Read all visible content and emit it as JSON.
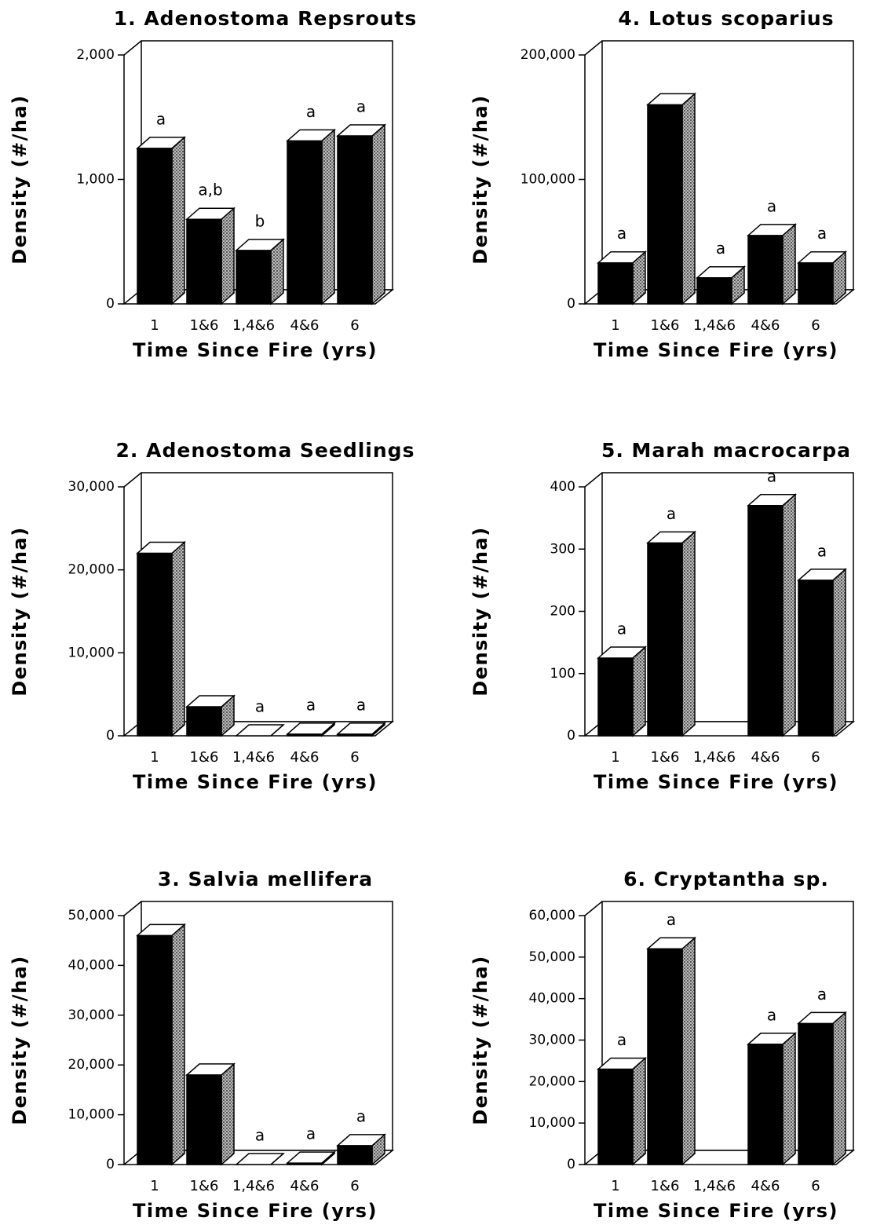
{
  "chart_data": [
    {
      "type": "bar3d",
      "title": "1. Adenostoma Repsrouts",
      "ylabel": "Density (#/ha)",
      "xlabel": "Time Since Fire (yrs)",
      "categories": [
        "1",
        "1&6",
        "1,4&6",
        "4&6",
        "6"
      ],
      "values": [
        1250,
        680,
        430,
        1310,
        1350
      ],
      "labels": [
        "a",
        "a,b",
        "b",
        "a",
        "a"
      ],
      "ylim": [
        0,
        2000
      ],
      "yticks": [
        0,
        {
          "value": 1000,
          "label": "1,000"
        },
        {
          "value": 2000,
          "label": "2,000"
        }
      ],
      "color": "#000000"
    },
    {
      "type": "bar3d",
      "title": "4. Lotus scoparius",
      "ylabel": "Density (#/ha)",
      "xlabel": "Time Since Fire (yrs)",
      "categories": [
        "1",
        "1&6",
        "1,4&6",
        "4&6",
        "6"
      ],
      "values": [
        33000,
        160000,
        21000,
        55000,
        33000
      ],
      "labels": [
        "a",
        null,
        "a",
        "a",
        "a"
      ],
      "ylim": [
        0,
        200000
      ],
      "yticks": [
        0,
        {
          "value": 100000,
          "label": "100,000"
        },
        {
          "value": 200000,
          "label": "200,000"
        }
      ],
      "color": "#000000"
    },
    {
      "type": "bar3d",
      "title": "2. Adenostoma Seedlings",
      "ylabel": "Density (#/ha)",
      "xlabel": "Time Since Fire (yrs)",
      "categories": [
        "1",
        "1&6",
        "1,4&6",
        "4&6",
        "6"
      ],
      "values": [
        22000,
        3500,
        0,
        200,
        200
      ],
      "labels": [
        null,
        null,
        "a",
        "a",
        "a"
      ],
      "ylim": [
        0,
        30000
      ],
      "yticks": [
        0,
        {
          "value": 10000,
          "label": "10,000"
        },
        {
          "value": 20000,
          "label": "20,000"
        },
        {
          "value": 30000,
          "label": "30,000"
        }
      ],
      "color": "#000000"
    },
    {
      "type": "bar3d",
      "title": "5. Marah macrocarpa",
      "ylabel": "Density (#/ha)",
      "xlabel": "Time Since Fire (yrs)",
      "categories": [
        "1",
        "1&6",
        "1,4&6",
        "4&6",
        "6"
      ],
      "values": [
        125,
        310,
        null,
        370,
        250
      ],
      "labels": [
        "a",
        "a",
        null,
        "a",
        "a"
      ],
      "ylim": [
        0,
        400
      ],
      "yticks": [
        0,
        100,
        200,
        300,
        400
      ],
      "color": "#000000"
    },
    {
      "type": "bar3d",
      "title": "3. Salvia mellifera",
      "ylabel": "Density (#/ha)",
      "xlabel": "Time Since Fire (yrs)",
      "categories": [
        "1",
        "1&6",
        "1,4&6",
        "4&6",
        "6"
      ],
      "values": [
        46000,
        18000,
        0,
        300,
        3800
      ],
      "labels": [
        null,
        null,
        "a",
        "a",
        "a"
      ],
      "ylim": [
        0,
        50000
      ],
      "yticks": [
        0,
        {
          "value": 10000,
          "label": "10,000"
        },
        {
          "value": 20000,
          "label": "20,000"
        },
        {
          "value": 30000,
          "label": "30,000"
        },
        {
          "value": 40000,
          "label": "40,000"
        },
        {
          "value": 50000,
          "label": "50,000"
        }
      ],
      "color": "#000000"
    },
    {
      "type": "bar3d",
      "title": "6. Cryptantha sp.",
      "ylabel": "Density (#/ha)",
      "xlabel": "Time Since Fire (yrs)",
      "categories": [
        "1",
        "1&6",
        "1,4&6",
        "4&6",
        "6"
      ],
      "values": [
        23000,
        52000,
        null,
        29000,
        34000
      ],
      "labels": [
        "a",
        "a",
        null,
        "a",
        "a"
      ],
      "ylim": [
        0,
        60000
      ],
      "yticks": [
        0,
        {
          "value": 10000,
          "label": "10,000"
        },
        {
          "value": 20000,
          "label": "20,000"
        },
        {
          "value": 30000,
          "label": "30,000"
        },
        {
          "value": 40000,
          "label": "40,000"
        },
        {
          "value": 50000,
          "label": "50,000"
        },
        {
          "value": 60000,
          "label": "60,000"
        }
      ],
      "color": "#000000"
    }
  ]
}
